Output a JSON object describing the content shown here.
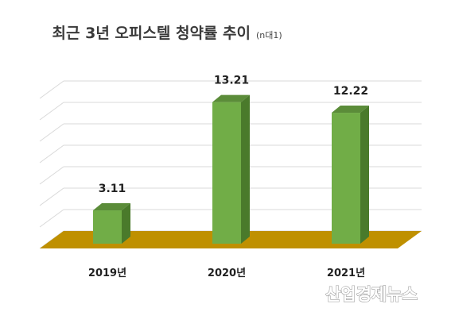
{
  "watermark": "산업경제뉴스",
  "colors": {
    "bar_front": "#71ad47",
    "bar_top": "#5b8c39",
    "bar_side": "#4a7a2b",
    "floor": "#bf9000",
    "grid": "#d9d9d9"
  },
  "chart_data": {
    "type": "bar",
    "title": "최근 3년 오피스텔 청약률 추이",
    "subtitle": "(n대1)",
    "categories": [
      "2019년",
      "2020년",
      "2021년"
    ],
    "series": [
      {
        "values": [
          3.11,
          13.21,
          12.22
        ]
      }
    ],
    "value_labels": [
      "3.11",
      "13.21",
      "12.22"
    ],
    "ylim": [
      0,
      14
    ],
    "grid": true,
    "legend": "none",
    "three_d": true
  }
}
